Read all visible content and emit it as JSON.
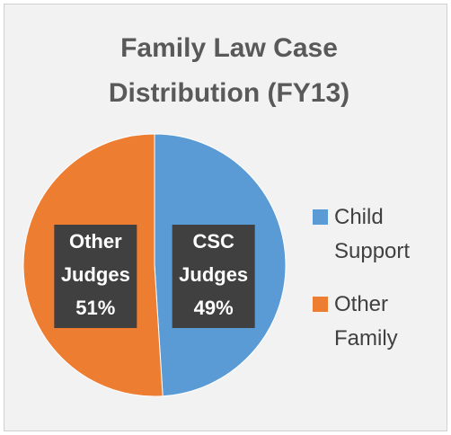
{
  "chart_data": {
    "type": "pie",
    "title": "Family Law Case Distribution (FY13)",
    "categories": [
      "Child Support",
      "Other Family"
    ],
    "values": [
      49,
      51
    ],
    "value_labels": [
      "49%",
      "51%"
    ],
    "label_names": [
      "CSC Judges",
      "Other Judges"
    ],
    "colors": [
      "#5b9bd5",
      "#ed7d31"
    ],
    "legend": "right"
  }
}
